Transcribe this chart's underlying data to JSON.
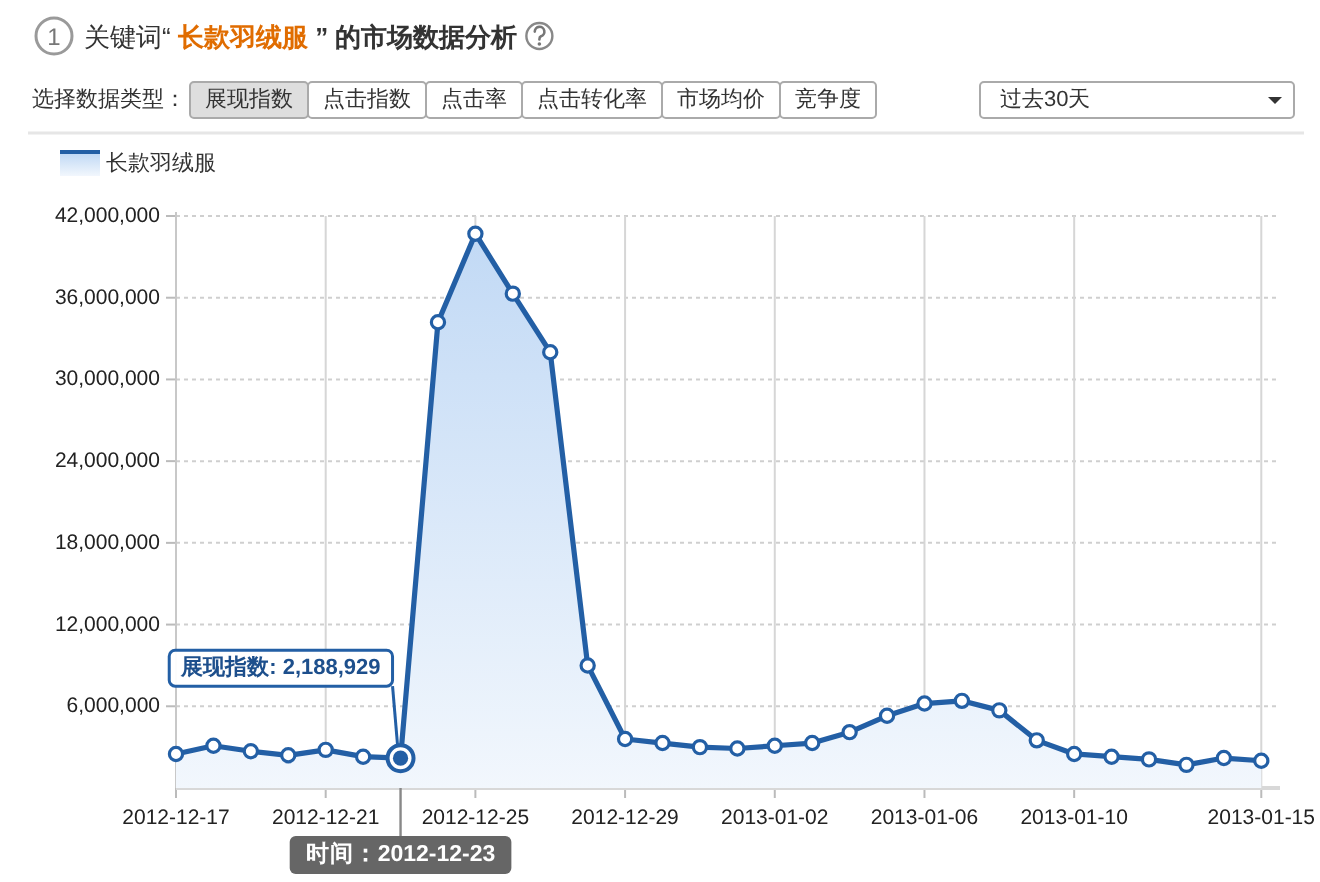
{
  "chart_data": {
    "type": "area",
    "title": "关键词“ 长款羽绒服 ” 的市场数据分析",
    "x": [
      "2012-12-17",
      "2012-12-18",
      "2012-12-19",
      "2012-12-20",
      "2012-12-21",
      "2012-12-22",
      "2012-12-23",
      "2012-12-24",
      "2012-12-25",
      "2012-12-26",
      "2012-12-27",
      "2012-12-28",
      "2012-12-29",
      "2012-12-30",
      "2012-12-31",
      "2013-01-01",
      "2013-01-02",
      "2013-01-03",
      "2013-01-04",
      "2013-01-05",
      "2013-01-06",
      "2013-01-07",
      "2013-01-08",
      "2013-01-09",
      "2013-01-10",
      "2013-01-11",
      "2013-01-12",
      "2013-01-13",
      "2013-01-14",
      "2013-01-15"
    ],
    "series": [
      {
        "name": "长款羽绒服",
        "color": "#235fa5",
        "values": [
          2500000,
          3100000,
          2700000,
          2400000,
          2800000,
          2300000,
          2188929,
          34200000,
          40700000,
          36300000,
          32000000,
          9000000,
          3600000,
          3300000,
          3000000,
          2900000,
          3100000,
          3300000,
          4100000,
          5300000,
          6200000,
          6400000,
          5700000,
          3500000,
          2500000,
          2300000,
          2100000,
          1700000,
          2200000,
          2000000
        ]
      }
    ],
    "xlim": [
      "2012-12-17",
      "2013-01-15T12:00"
    ],
    "xticks": [
      "2012-12-17",
      "2012-12-21",
      "2012-12-25",
      "2012-12-29",
      "2013-01-02",
      "2013-01-06",
      "2013-01-10",
      "2013-01-15"
    ],
    "ylim": [
      0,
      42000000
    ],
    "yticks": [
      {
        "value": 6000000,
        "label": "6,000,000"
      },
      {
        "value": 12000000,
        "label": "12,000,000"
      },
      {
        "value": 18000000,
        "label": "18,000,000"
      },
      {
        "value": 24000000,
        "label": "24,000,000"
      },
      {
        "value": 30000000,
        "label": "30,000,000"
      },
      {
        "value": 36000000,
        "label": "36,000,000"
      },
      {
        "value": 42000000,
        "label": "42,000,000"
      }
    ],
    "grid": true,
    "legend": "top left",
    "marker": "circle",
    "annotations": [
      "1",
      "选择数据类型：",
      "展现指数",
      "点击指数",
      "点击率",
      "点击转化率",
      "市场均价",
      "竞争度",
      "过去30天",
      {
        "text": "展现指数: 2,188,929",
        "x": "2012-12-23",
        "y": 2188929
      },
      {
        "text": "时间：2012-12-23",
        "x": "2012-12-23"
      }
    ]
  }
}
